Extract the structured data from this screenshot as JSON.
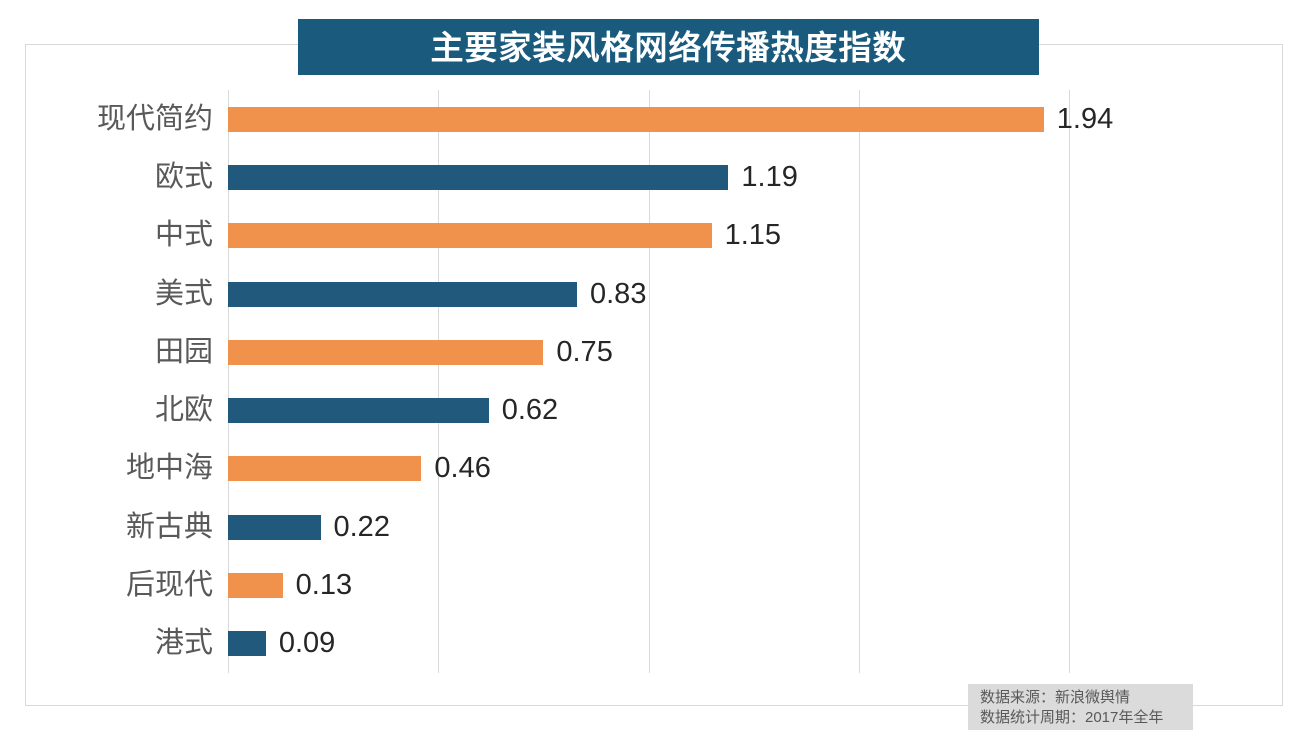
{
  "chart_data": {
    "type": "bar",
    "orientation": "horizontal",
    "title": "主要家装风格网络传播热度指数",
    "categories": [
      "现代简约",
      "欧式",
      "中式",
      "美式",
      "田园",
      "北欧",
      "地中海",
      "新古典",
      "后现代",
      "港式"
    ],
    "values": [
      1.94,
      1.19,
      1.15,
      0.83,
      0.75,
      0.62,
      0.46,
      0.22,
      0.13,
      0.09
    ],
    "value_labels": [
      "1.94",
      "1.19",
      "1.15",
      "0.83",
      "0.75",
      "0.62",
      "0.46",
      "0.22",
      "0.13",
      "0.09"
    ],
    "xlabel": "",
    "ylabel": "",
    "xlim": [
      0,
      2
    ],
    "gridline_step": 0.5,
    "grid": true,
    "legend_position": "none",
    "bar_color_pattern": "alternating",
    "bar_color_first": "#F0924B",
    "bar_color_second": "#20597B"
  },
  "colors": {
    "title_bg": "#1A5A7D",
    "title_text": "#FFFFFF",
    "bar_orange": "#F0924B",
    "bar_teal": "#20597B",
    "gridline": "#D9D9D9",
    "frame_border": "#D9D9D9",
    "category_label": "#595959",
    "value_label": "#262626",
    "source_bg": "#DBDBDB",
    "source_text": "#595959"
  },
  "source": {
    "line1": "数据来源：新浪微舆情",
    "line2": "数据统计周期：2017年全年"
  }
}
